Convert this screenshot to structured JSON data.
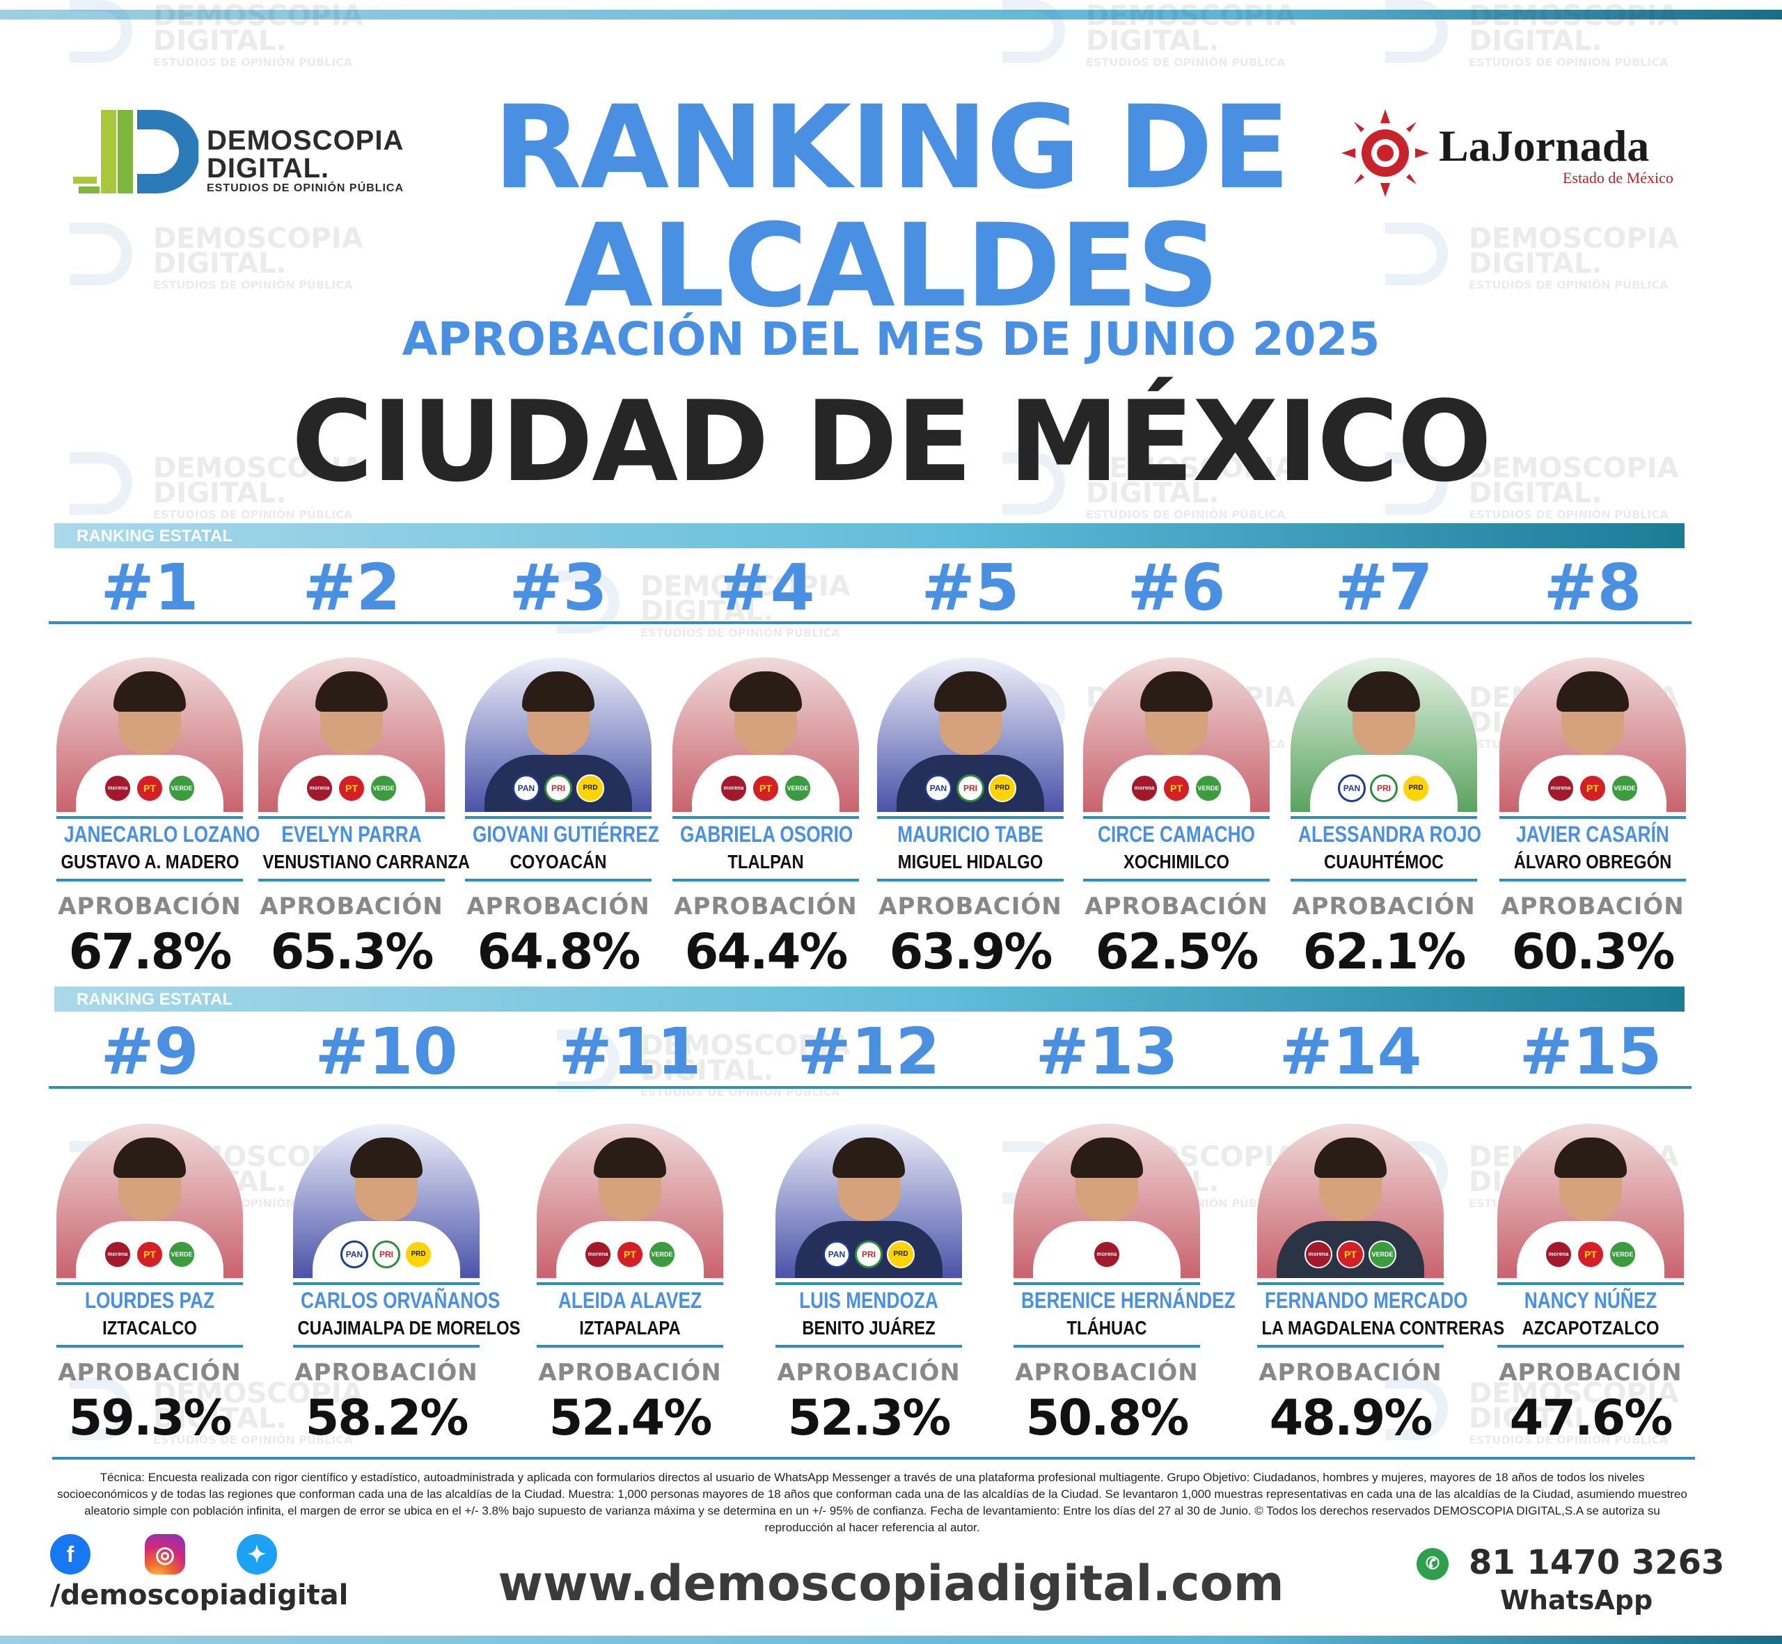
{
  "header": {
    "title_line1": "RANKING DE",
    "title_line2": "ALCALDES",
    "subtitle": "APROBACIÓN DEL MES DE JUNIO 2025",
    "region": "CIUDAD DE MÉXICO"
  },
  "logo_demoscopia": {
    "name_line1": "DEMOSCOPIA",
    "name_line2": "DIGITAL.",
    "tagline": "ESTUDIOS DE OPINIÓN PÚBLICA"
  },
  "logo_jornada": {
    "name": "LaJornada",
    "edition": "Estado de México"
  },
  "section_label": "RANKING ESTATAL",
  "approval_label": "APROBACIÓN",
  "colors": {
    "accent_blue": "#4a90e2",
    "bar_teal": "#2f8fb8",
    "morena_red": "#a3182a",
    "pan_blue": "#1f3c8c"
  },
  "candidates": [
    {
      "rank": "#1",
      "name": "JANECARLO LOZANO",
      "municipality": "GUSTAVO A. MADERO",
      "approval": "67.8%",
      "badges": [
        "morena",
        "PT",
        "VERDE"
      ]
    },
    {
      "rank": "#2",
      "name": "EVELYN PARRA",
      "municipality": "VENUSTIANO CARRANZA",
      "approval": "65.3%",
      "badges": [
        "morena",
        "PT",
        "VERDE"
      ]
    },
    {
      "rank": "#3",
      "name": "GIOVANI GUTIÉRREZ",
      "municipality": "COYOACÁN",
      "approval": "64.8%",
      "badges": [
        "PAN",
        "PRI",
        "PRD"
      ]
    },
    {
      "rank": "#4",
      "name": "GABRIELA OSORIO",
      "municipality": "TLALPAN",
      "approval": "64.4%",
      "badges": [
        "morena",
        "PT",
        "VERDE"
      ]
    },
    {
      "rank": "#5",
      "name": "MAURICIO TABE",
      "municipality": "MIGUEL HIDALGO",
      "approval": "63.9%",
      "badges": [
        "PAN",
        "PRI",
        "PRD"
      ]
    },
    {
      "rank": "#6",
      "name": "CIRCE CAMACHO",
      "municipality": "XOCHIMILCO",
      "approval": "62.5%",
      "badges": [
        "morena",
        "PT",
        "VERDE"
      ]
    },
    {
      "rank": "#7",
      "name": "ALESSANDRA ROJO",
      "municipality": "CUAUHTÉMOC",
      "approval": "62.1%",
      "badges": [
        "PAN",
        "PRI",
        "PRD"
      ]
    },
    {
      "rank": "#8",
      "name": "JAVIER CASARÍN",
      "municipality": "ÁLVARO OBREGÓN",
      "approval": "60.3%",
      "badges": [
        "morena",
        "PT",
        "VERDE"
      ]
    },
    {
      "rank": "#9",
      "name": "LOURDES PAZ",
      "municipality": "IZTACALCO",
      "approval": "59.3%",
      "badges": [
        "morena",
        "PT",
        "VERDE"
      ]
    },
    {
      "rank": "#10",
      "name": "CARLOS ORVAÑANOS",
      "municipality": "CUAJIMALPA DE MORELOS",
      "approval": "58.2%",
      "badges": [
        "PAN",
        "PRI",
        "PRD"
      ]
    },
    {
      "rank": "#11",
      "name": "ALEIDA ALAVEZ",
      "municipality": "IZTAPALAPA",
      "approval": "52.4%",
      "badges": [
        "morena",
        "PT",
        "VERDE"
      ]
    },
    {
      "rank": "#12",
      "name": "LUIS MENDOZA",
      "municipality": "BENITO JUÁREZ",
      "approval": "52.3%",
      "badges": [
        "PAN",
        "PRI",
        "PRD"
      ]
    },
    {
      "rank": "#13",
      "name": "BERENICE HERNÁNDEZ",
      "municipality": "TLÁHUAC",
      "approval": "50.8%",
      "badges": [
        "morena"
      ]
    },
    {
      "rank": "#14",
      "name": "FERNANDO MERCADO",
      "municipality": "LA MAGDALENA CONTRERAS",
      "approval": "48.9%",
      "badges": [
        "morena",
        "PT",
        "VERDE"
      ]
    },
    {
      "rank": "#15",
      "name": "NANCY NÚÑEZ",
      "municipality": "AZCAPOTZALCO",
      "approval": "47.6%",
      "badges": [
        "morena",
        "PT",
        "VERDE"
      ]
    }
  ],
  "methodology": "Técnica: Encuesta realizada con rigor científico y estadístico, autoadministrada y aplicada con formularios directos al usuario de WhatsApp Messenger a través de una plataforma profesional multiagente. Grupo Objetivo: Ciudadanos, hombres y mujeres, mayores de 18 años de todos los niveles socioeconómicos y de todas las regiones que conforman cada una de las alcaldías de la Ciudad. Muestra: 1,000 personas mayores de 18 años que conforman cada una de las alcaldías de la Ciudad. Se levantaron 1,000 muestras representativas en cada una de las alcaldías de la Ciudad, asumiendo muestreo aleatorio simple con población infinita, el margen de error se ubica en el +/- 3.8% bajo supuesto de varianza máxima y se determina en un +/- 95% de confianza. Fecha de levantamiento: Entre los días del 27 al 30 de Junio. © Todos los derechos reservados DEMOSCOPIA DIGITAL,S.A se autoriza su reproducción al hacer referencia al autor.",
  "footer": {
    "social_handle": "/demoscopiadigital",
    "website": "www.demoscopiadigital.com",
    "phone": "81 1470 3263",
    "phone_label": "WhatsApp",
    "icons": [
      "facebook-icon",
      "instagram-icon",
      "twitter-icon",
      "whatsapp-icon"
    ]
  }
}
